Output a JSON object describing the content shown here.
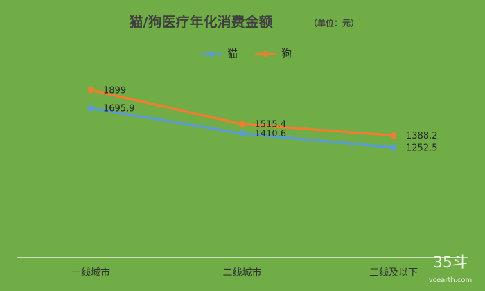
{
  "chart_data": {
    "type": "line",
    "title": "猫/狗医疗年化消费金额",
    "unit": "（单位：元）",
    "categories": [
      "一线城市",
      "二线城市",
      "三线及以下"
    ],
    "series": [
      {
        "name": "猫",
        "color": "#5b9bd5",
        "values": [
          1695.9,
          1410.6,
          1252.5
        ]
      },
      {
        "name": "狗",
        "color": "#ed7d31",
        "values": [
          1899,
          1515.4,
          1388.2
        ]
      }
    ],
    "legend": "top",
    "watermark": "35斗",
    "watermark_url": "vcearth.com"
  }
}
